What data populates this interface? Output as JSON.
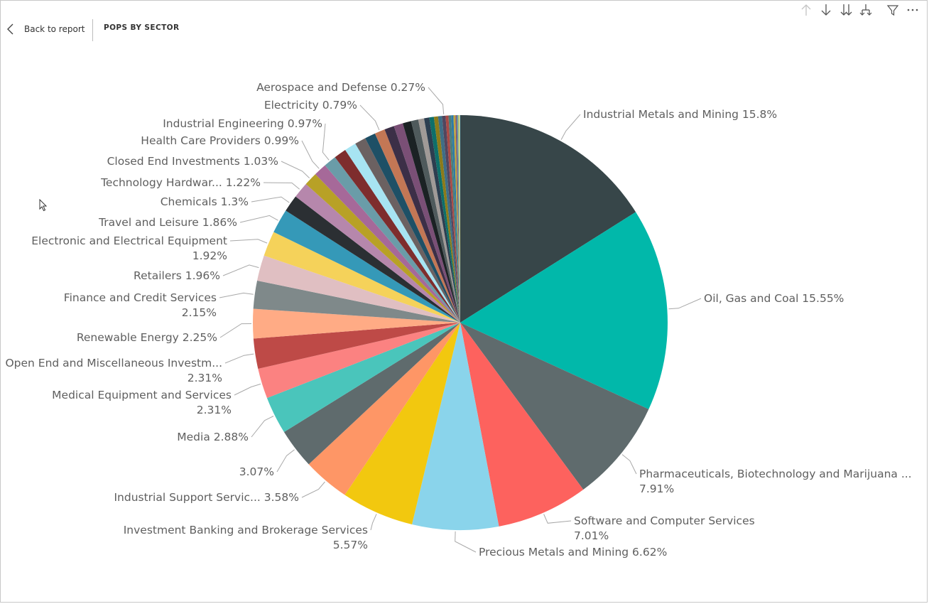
{
  "header": {
    "back_label": "Back to report",
    "visual_title": "POPS BY SECTOR"
  },
  "toolbar": {
    "icons": [
      "drill-up-icon",
      "drill-down-icon",
      "expand-next-level-icon",
      "expand-hierarchy-icon",
      "filter-icon",
      "more-options-icon"
    ]
  },
  "chart_data": {
    "type": "pie",
    "title": "",
    "unit": "%",
    "slices": [
      {
        "label": "Industrial Metals and Mining",
        "value": 15.8,
        "color": "#374649",
        "display": "Industrial Metals and Mining 15.8%"
      },
      {
        "label": "Oil, Gas and Coal",
        "value": 15.55,
        "color": "#01B8AA",
        "display": "Oil, Gas and Coal 15.55%"
      },
      {
        "label": "Pharmaceuticals, Biotechnology and Marijuana ...",
        "value": 7.91,
        "color": "#5F6B6D",
        "display": "Pharmaceuticals, Biotechnology and Marijuana ...",
        "display2": "7.91%"
      },
      {
        "label": "Software and Computer Services",
        "value": 7.01,
        "color": "#FD625E",
        "display": "Software and Computer Services",
        "display2": "7.01%"
      },
      {
        "label": "Precious Metals and Mining",
        "value": 6.62,
        "color": "#8AD4EB",
        "display": "Precious Metals and Mining 6.62%"
      },
      {
        "label": "Investment Banking and Brokerage Services",
        "value": 5.57,
        "color": "#F2C80F",
        "display": "Investment Banking and Brokerage Services",
        "display2": "5.57%"
      },
      {
        "label": "Industrial Support Servic...",
        "value": 3.58,
        "color": "#FE9666",
        "display": "Industrial Support Servic... 3.58%"
      },
      {
        "label": "",
        "value": 3.07,
        "color": "#5F6B6D",
        "display": "3.07%"
      },
      {
        "label": "Media",
        "value": 2.88,
        "color": "#4AC5BB",
        "display": "Media 2.88%"
      },
      {
        "label": "Medical Equipment and Services",
        "value": 2.31,
        "color": "#FB8281",
        "display": "Medical Equipment and Services",
        "display2": "2.31%"
      },
      {
        "label": "Open End and Miscellaneous Investm...",
        "value": 2.31,
        "color": "#BE4A47",
        "display": "Open End and Miscellaneous Investm...",
        "display2": "2.31%"
      },
      {
        "label": "Renewable Energy",
        "value": 2.25,
        "color": "#FFAB85",
        "display": "Renewable Energy 2.25%"
      },
      {
        "label": "Finance and Credit Services",
        "value": 2.15,
        "color": "#7F898A",
        "display": "Finance and Credit Services",
        "display2": "2.15%"
      },
      {
        "label": "Retailers",
        "value": 1.96,
        "color": "#E0BFC2",
        "display": "Retailers 1.96%"
      },
      {
        "label": "Electronic and Electrical Equipment",
        "value": 1.92,
        "color": "#F5D25A",
        "display": "Electronic and Electrical Equipment",
        "display2": "1.92%"
      },
      {
        "label": "Travel and Leisure",
        "value": 1.86,
        "color": "#3599B8",
        "display": "Travel and Leisure 1.86%"
      },
      {
        "label": "Chemicals",
        "value": 1.3,
        "color": "#2B2F33",
        "display": "Chemicals 1.3%"
      },
      {
        "label": "Technology Hardwar...",
        "value": 1.22,
        "color": "#B687AC",
        "display": "Technology Hardwar... 1.22%"
      },
      {
        "label": "Closed End Investments",
        "value": 1.03,
        "color": "#B8A126",
        "display": "Closed End Investments 1.03%"
      },
      {
        "label": "Health Care Providers",
        "value": 0.99,
        "color": "#A66999",
        "display": "Health Care Providers 0.99%"
      },
      {
        "label": "Industrial Engineering",
        "value": 0.97,
        "color": "#6A9CA8",
        "display": "Industrial Engineering 0.97%"
      },
      {
        "label": "",
        "value": 0.95,
        "color": "#7E2D2D",
        "display": ""
      },
      {
        "label": "",
        "value": 0.9,
        "color": "#A7E4F2",
        "display": ""
      },
      {
        "label": "",
        "value": 0.85,
        "color": "#6B6161",
        "display": ""
      },
      {
        "label": "",
        "value": 0.82,
        "color": "#1E5066",
        "display": ""
      },
      {
        "label": "Electricity",
        "value": 0.79,
        "color": "#C37755",
        "display": "Electricity 0.79%"
      },
      {
        "label": "",
        "value": 0.75,
        "color": "#3C2F47",
        "display": ""
      },
      {
        "label": "",
        "value": 0.7,
        "color": "#7A4F76",
        "display": ""
      },
      {
        "label": "",
        "value": 0.65,
        "color": "#1B2224",
        "display": ""
      },
      {
        "label": "",
        "value": 0.55,
        "color": "#4F5A5C",
        "display": ""
      },
      {
        "label": "",
        "value": 0.45,
        "color": "#A09A97",
        "display": ""
      },
      {
        "label": "",
        "value": 0.4,
        "color": "#2C3E50",
        "display": ""
      },
      {
        "label": "",
        "value": 0.35,
        "color": "#0E6F6A",
        "display": ""
      },
      {
        "label": "",
        "value": 0.32,
        "color": "#8C7B1A",
        "display": ""
      },
      {
        "label": "",
        "value": 0.3,
        "color": "#3E6E86",
        "display": ""
      },
      {
        "label": "Aerospace and Defense",
        "value": 0.27,
        "color": "#52465E",
        "display": "Aerospace and Defense 0.27%"
      },
      {
        "label": "",
        "value": 0.22,
        "color": "#AA4A45",
        "display": ""
      },
      {
        "label": "",
        "value": 0.2,
        "color": "#4A7E7A",
        "display": ""
      },
      {
        "label": "",
        "value": 0.18,
        "color": "#2D7BA6",
        "display": ""
      },
      {
        "label": "",
        "value": 0.15,
        "color": "#C2A23B",
        "display": ""
      },
      {
        "label": "",
        "value": 0.12,
        "color": "#7B5A7E",
        "display": ""
      },
      {
        "label": "",
        "value": 0.1,
        "color": "#5AA6B5",
        "display": ""
      },
      {
        "label": "",
        "value": 0.08,
        "color": "#E6C64B",
        "display": ""
      },
      {
        "label": "",
        "value": 0.06,
        "color": "#9AD2C6",
        "display": ""
      }
    ]
  }
}
